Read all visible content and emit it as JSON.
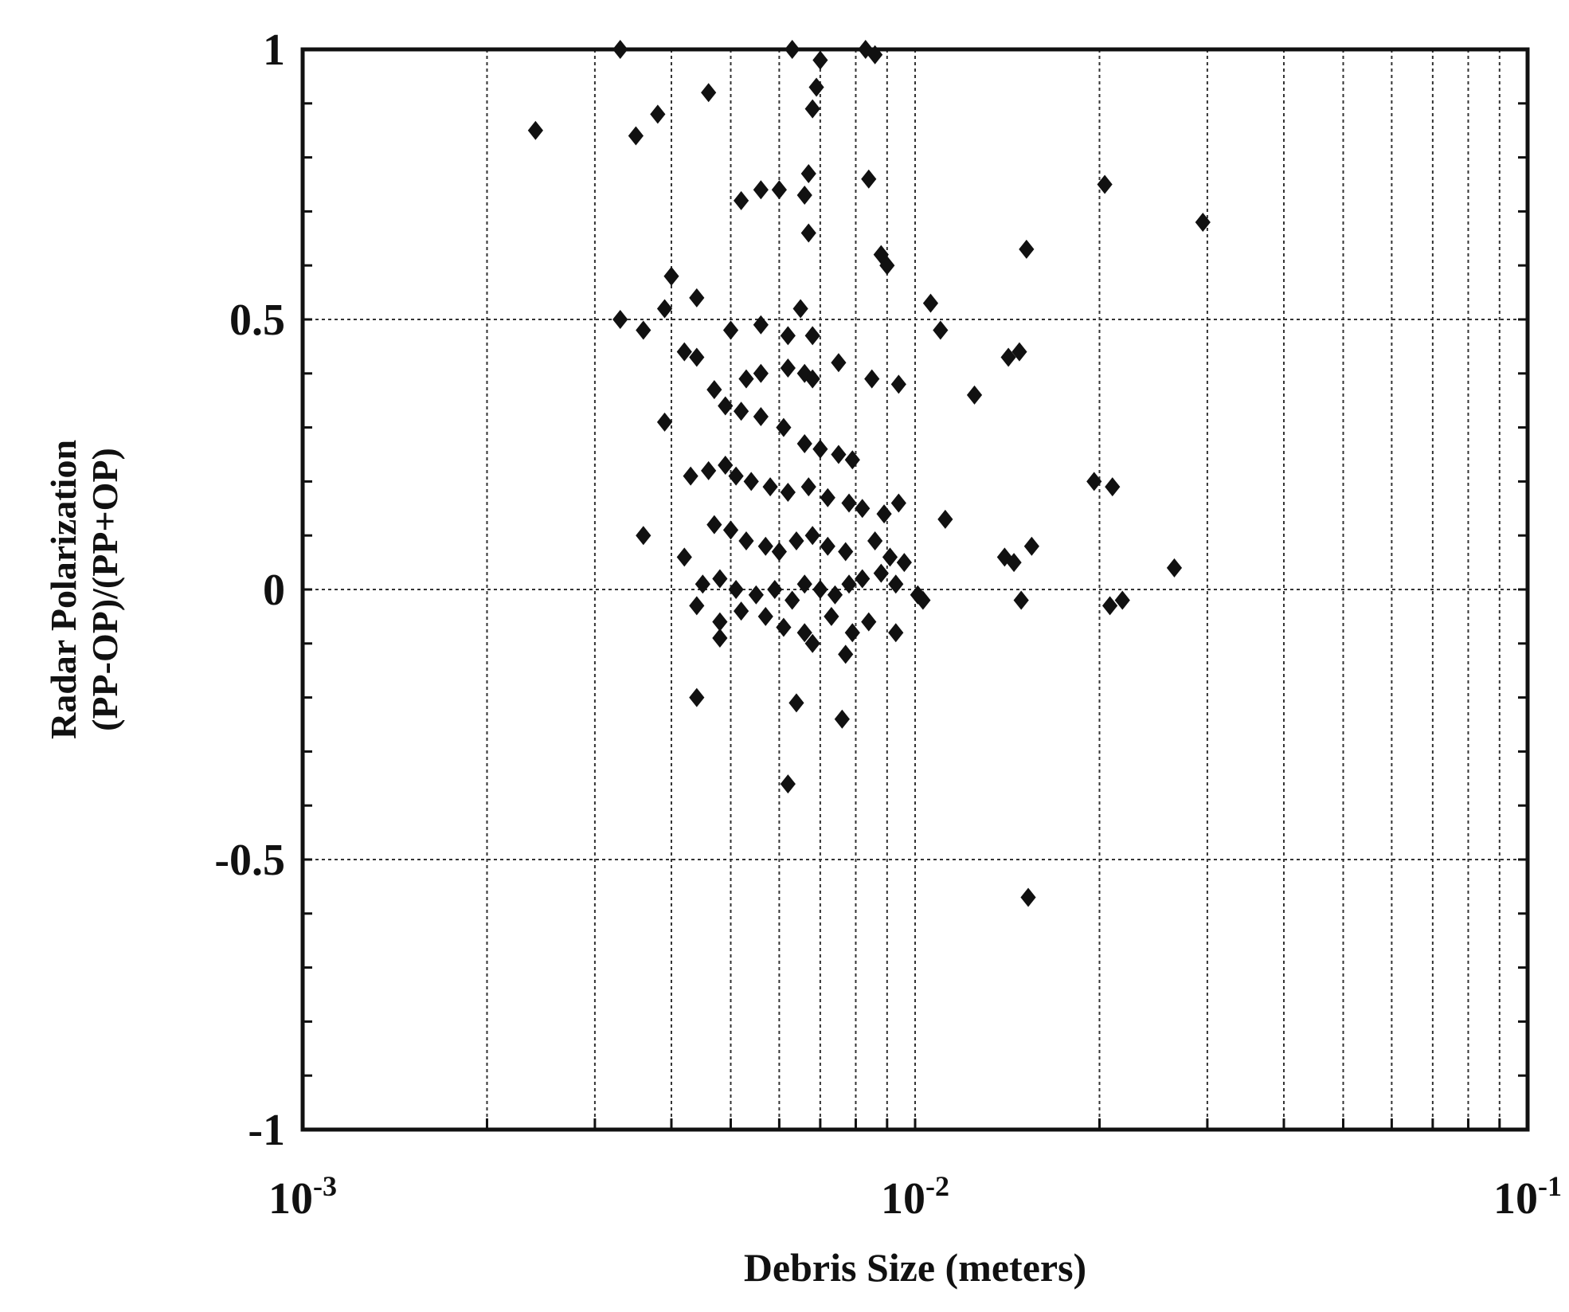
{
  "chart_data": {
    "type": "scatter",
    "title": "",
    "xlabel": "Debris Size (meters)",
    "ylabel_line1": "Radar Polarization",
    "ylabel_line2": "(PP-OP)/(PP+OP)",
    "xscale": "log",
    "xlim": [
      0.001,
      0.1
    ],
    "ylim": [
      -1,
      1
    ],
    "grid": true,
    "legend": "none",
    "marker": "diamond",
    "colors": {
      "marker": "#111111",
      "axis": "#111111",
      "grid": "#333333"
    },
    "x_tick_labels": [
      {
        "base": "10",
        "exp": "-3",
        "value": 0.001
      },
      {
        "base": "10",
        "exp": "-2",
        "value": 0.01
      },
      {
        "base": "10",
        "exp": "-1",
        "value": 0.1
      }
    ],
    "y_tick_labels": [
      {
        "label": "1",
        "value": 1
      },
      {
        "label": "0.5",
        "value": 0.5
      },
      {
        "label": "0",
        "value": 0
      },
      {
        "label": "-0.5",
        "value": -0.5
      },
      {
        "label": "-1",
        "value": -1
      }
    ],
    "points": [
      [
        0.0024,
        0.85
      ],
      [
        0.0033,
        1.0
      ],
      [
        0.0035,
        0.84
      ],
      [
        0.0038,
        0.88
      ],
      [
        0.0046,
        0.92
      ],
      [
        0.0063,
        1.0
      ],
      [
        0.007,
        0.98
      ],
      [
        0.0069,
        0.93
      ],
      [
        0.0068,
        0.89
      ],
      [
        0.0083,
        1.0
      ],
      [
        0.0086,
        0.99
      ],
      [
        0.0052,
        0.72
      ],
      [
        0.0056,
        0.74
      ],
      [
        0.006,
        0.74
      ],
      [
        0.0066,
        0.73
      ],
      [
        0.0067,
        0.77
      ],
      [
        0.0084,
        0.76
      ],
      [
        0.0088,
        0.62
      ],
      [
        0.009,
        0.6
      ],
      [
        0.0067,
        0.66
      ],
      [
        0.0204,
        0.75
      ],
      [
        0.0295,
        0.68
      ],
      [
        0.0152,
        0.63
      ],
      [
        0.004,
        0.58
      ],
      [
        0.0044,
        0.54
      ],
      [
        0.0039,
        0.52
      ],
      [
        0.0033,
        0.5
      ],
      [
        0.0036,
        0.48
      ],
      [
        0.005,
        0.48
      ],
      [
        0.0056,
        0.49
      ],
      [
        0.0062,
        0.47
      ],
      [
        0.0065,
        0.52
      ],
      [
        0.0068,
        0.47
      ],
      [
        0.0106,
        0.53
      ],
      [
        0.011,
        0.48
      ],
      [
        0.0042,
        0.44
      ],
      [
        0.0044,
        0.43
      ],
      [
        0.0047,
        0.37
      ],
      [
        0.0053,
        0.39
      ],
      [
        0.0056,
        0.4
      ],
      [
        0.0062,
        0.41
      ],
      [
        0.0066,
        0.4
      ],
      [
        0.0068,
        0.39
      ],
      [
        0.0075,
        0.42
      ],
      [
        0.0085,
        0.39
      ],
      [
        0.0094,
        0.38
      ],
      [
        0.0125,
        0.36
      ],
      [
        0.0142,
        0.43
      ],
      [
        0.0148,
        0.44
      ],
      [
        0.0039,
        0.31
      ],
      [
        0.0049,
        0.34
      ],
      [
        0.0052,
        0.33
      ],
      [
        0.0056,
        0.32
      ],
      [
        0.0061,
        0.3
      ],
      [
        0.0066,
        0.27
      ],
      [
        0.007,
        0.26
      ],
      [
        0.0075,
        0.25
      ],
      [
        0.0079,
        0.24
      ],
      [
        0.0043,
        0.21
      ],
      [
        0.0046,
        0.22
      ],
      [
        0.0049,
        0.23
      ],
      [
        0.0051,
        0.21
      ],
      [
        0.0054,
        0.2
      ],
      [
        0.0058,
        0.19
      ],
      [
        0.0062,
        0.18
      ],
      [
        0.0067,
        0.19
      ],
      [
        0.0072,
        0.17
      ],
      [
        0.0078,
        0.16
      ],
      [
        0.0082,
        0.15
      ],
      [
        0.0089,
        0.14
      ],
      [
        0.0094,
        0.16
      ],
      [
        0.0196,
        0.2
      ],
      [
        0.021,
        0.19
      ],
      [
        0.0036,
        0.1
      ],
      [
        0.0047,
        0.12
      ],
      [
        0.005,
        0.11
      ],
      [
        0.0053,
        0.09
      ],
      [
        0.0057,
        0.08
      ],
      [
        0.006,
        0.07
      ],
      [
        0.0064,
        0.09
      ],
      [
        0.0068,
        0.1
      ],
      [
        0.0072,
        0.08
      ],
      [
        0.0077,
        0.07
      ],
      [
        0.0086,
        0.09
      ],
      [
        0.0091,
        0.06
      ],
      [
        0.0096,
        0.05
      ],
      [
        0.0112,
        0.13
      ],
      [
        0.014,
        0.06
      ],
      [
        0.0145,
        0.05
      ],
      [
        0.0155,
        0.08
      ],
      [
        0.0265,
        0.04
      ],
      [
        0.0042,
        0.06
      ],
      [
        0.0045,
        0.01
      ],
      [
        0.0048,
        0.02
      ],
      [
        0.0051,
        0.0
      ],
      [
        0.0055,
        -0.01
      ],
      [
        0.0059,
        0.0
      ],
      [
        0.0063,
        -0.02
      ],
      [
        0.0066,
        0.01
      ],
      [
        0.007,
        0.0
      ],
      [
        0.0074,
        -0.01
      ],
      [
        0.0078,
        0.01
      ],
      [
        0.0082,
        0.02
      ],
      [
        0.0088,
        0.03
      ],
      [
        0.0093,
        0.01
      ],
      [
        0.0101,
        -0.01
      ],
      [
        0.0103,
        -0.02
      ],
      [
        0.0149,
        -0.02
      ],
      [
        0.0208,
        -0.03
      ],
      [
        0.0218,
        -0.02
      ],
      [
        0.0044,
        -0.03
      ],
      [
        0.0048,
        -0.06
      ],
      [
        0.0052,
        -0.04
      ],
      [
        0.0057,
        -0.05
      ],
      [
        0.0061,
        -0.07
      ],
      [
        0.0066,
        -0.08
      ],
      [
        0.0073,
        -0.05
      ],
      [
        0.0079,
        -0.08
      ],
      [
        0.0084,
        -0.06
      ],
      [
        0.0093,
        -0.08
      ],
      [
        0.0048,
        -0.09
      ],
      [
        0.0068,
        -0.1
      ],
      [
        0.0077,
        -0.12
      ],
      [
        0.0044,
        -0.2
      ],
      [
        0.0064,
        -0.21
      ],
      [
        0.0076,
        -0.24
      ],
      [
        0.0062,
        -0.36
      ],
      [
        0.0153,
        -0.57
      ]
    ]
  }
}
